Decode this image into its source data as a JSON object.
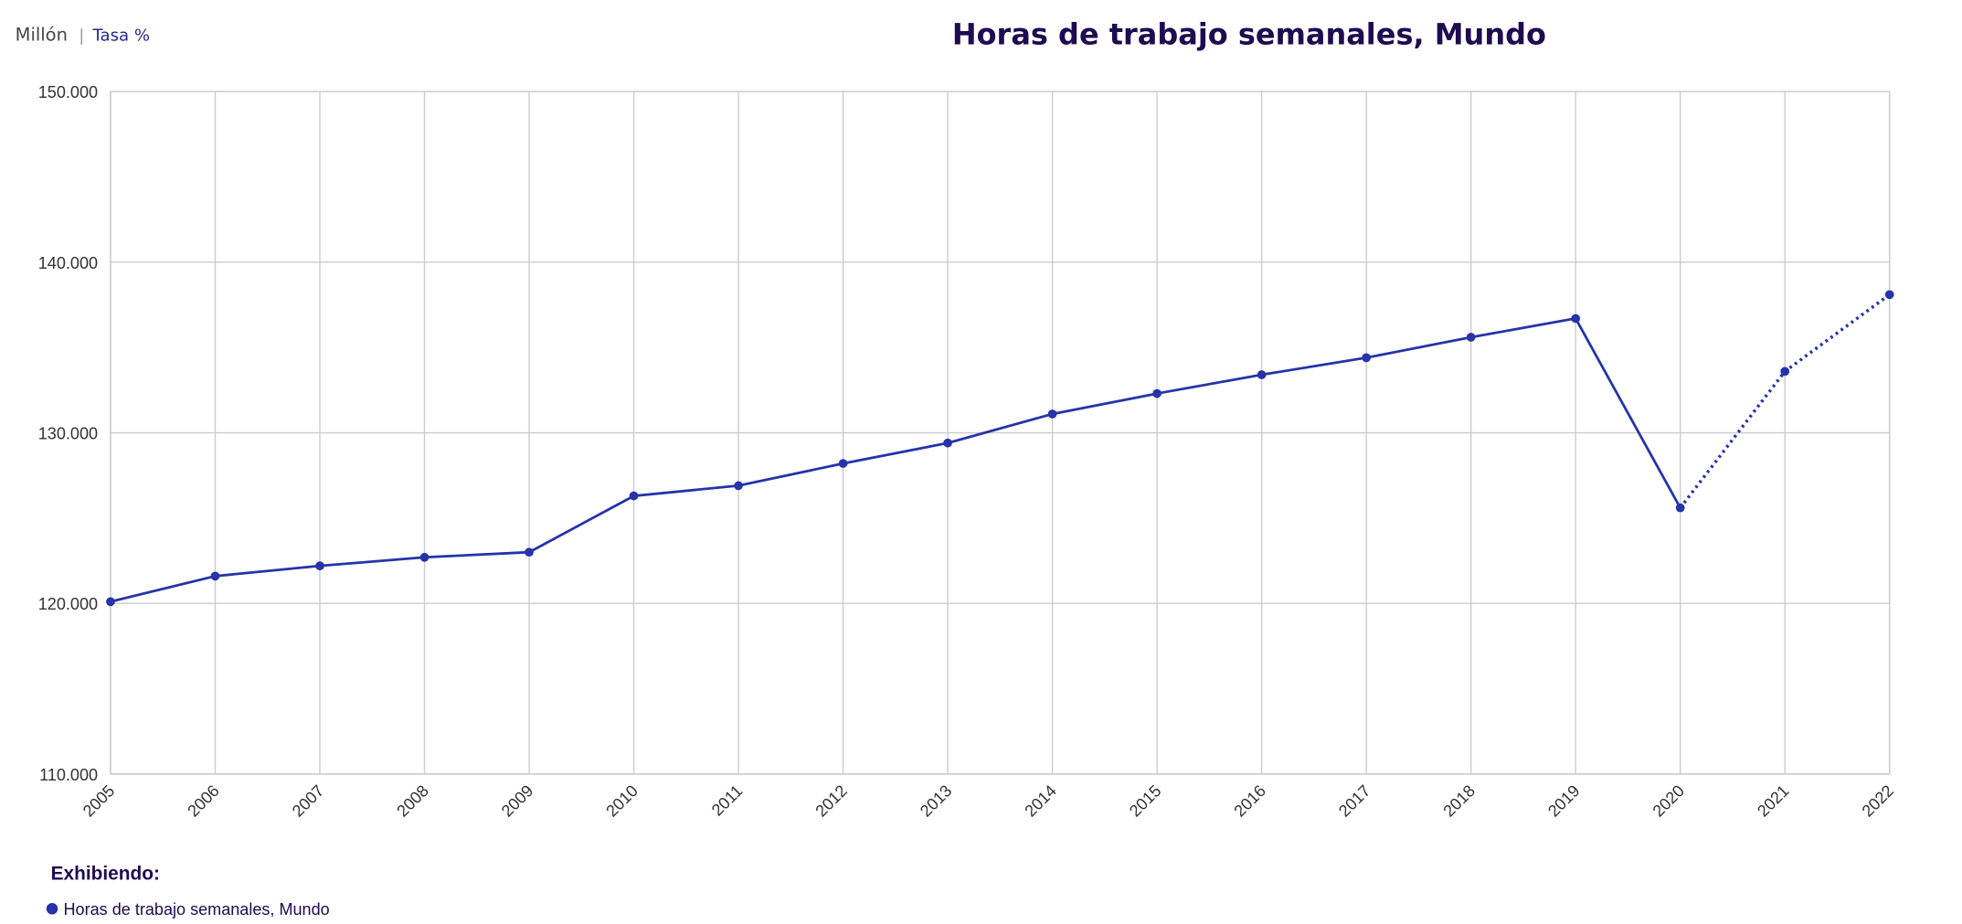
{
  "header": {
    "toggles": [
      "Millón",
      "Tasa %"
    ],
    "separator": "|"
  },
  "chart_data": {
    "type": "line",
    "title": "Horas de trabajo semanales, Mundo",
    "categories": [
      "2005",
      "2006",
      "2007",
      "2008",
      "2009",
      "2010",
      "2011",
      "2012",
      "2013",
      "2014",
      "2015",
      "2016",
      "2017",
      "2018",
      "2019",
      "2020",
      "2021",
      "2022"
    ],
    "series": [
      {
        "name": "Horas de trabajo semanales, Mundo",
        "color": "#2633a9",
        "values": [
          120100,
          121600,
          122200,
          122700,
          123000,
          126300,
          126900,
          128200,
          129400,
          131100,
          132300,
          133400,
          134400,
          135600,
          136700,
          125600,
          133600,
          138100
        ]
      }
    ],
    "projection_start": "2020",
    "ylim": [
      110000,
      150000
    ],
    "yticks": [
      {
        "value": 110000,
        "label": "110.000"
      },
      {
        "value": 120000,
        "label": "120.000"
      },
      {
        "value": 130000,
        "label": "130.000"
      },
      {
        "value": 140000,
        "label": "140.000"
      },
      {
        "value": 150000,
        "label": "150.000"
      }
    ],
    "grid": true,
    "legend_title": "Exhibiendo:",
    "legend": "bottom-left"
  }
}
